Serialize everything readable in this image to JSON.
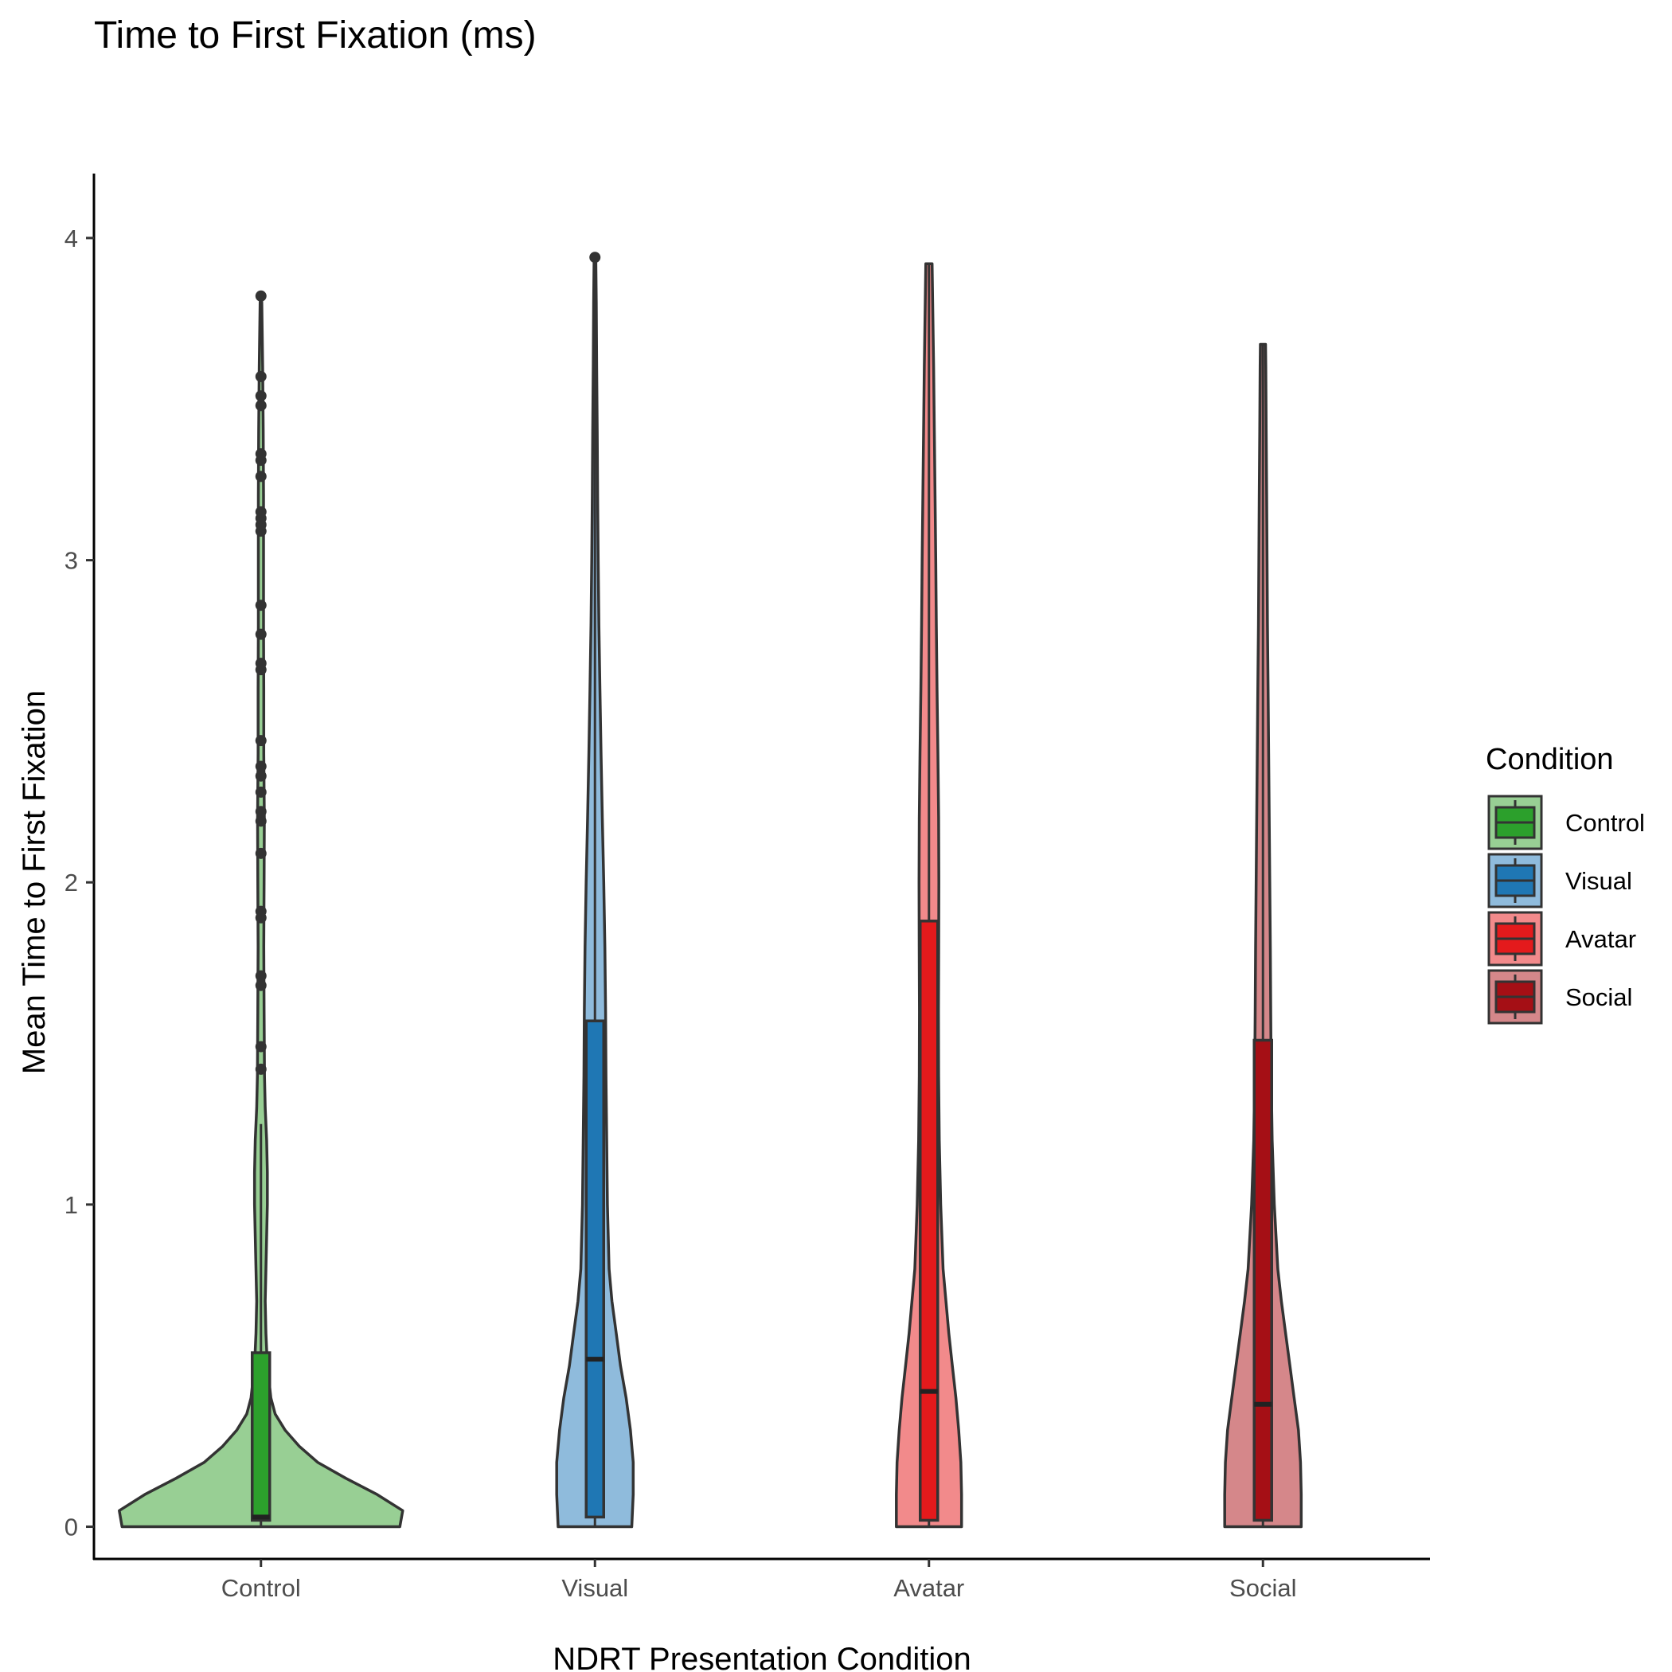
{
  "chart_data": {
    "type": "violin",
    "title": "Time to First Fixation (ms)",
    "xlabel": "NDRT Presentation Condition",
    "ylabel": "Mean Time to First Fixation",
    "ylim": [
      -0.1,
      4.2
    ],
    "yticks": [
      0,
      1,
      2,
      3,
      4
    ],
    "grid": false,
    "categories": [
      "Control",
      "Visual",
      "Avatar",
      "Social"
    ],
    "legend": {
      "title": "Condition",
      "placement": "right",
      "items": [
        {
          "label": "Control",
          "box_color": "#2ca02c",
          "violin_color": "#98cf94"
        },
        {
          "label": "Visual",
          "box_color": "#1f77b4",
          "violin_color": "#8fbbdc"
        },
        {
          "label": "Avatar",
          "box_color": "#e41a1c",
          "violin_color": "#f28a8b"
        },
        {
          "label": "Social",
          "box_color": "#a50f15",
          "violin_color": "#d5878a"
        }
      ]
    },
    "series": [
      {
        "category": "Control",
        "box_color": "#2ca02c",
        "violin_color": "#98cf94",
        "box": {
          "min": 0.0,
          "q1": 0.02,
          "median": 0.03,
          "q3": 0.54,
          "max": 1.25
        },
        "outliers": [
          1.42,
          1.49,
          1.68,
          1.71,
          1.89,
          1.91,
          2.09,
          2.19,
          2.22,
          2.28,
          2.33,
          2.36,
          2.44,
          2.66,
          2.68,
          2.77,
          2.86,
          3.09,
          3.11,
          3.13,
          3.15,
          3.26,
          3.31,
          3.33,
          3.48,
          3.51,
          3.57,
          3.82
        ],
        "density_max": 3.82,
        "density": [
          [
            0.0,
            0.98
          ],
          [
            0.05,
            1.0
          ],
          [
            0.1,
            0.82
          ],
          [
            0.15,
            0.6
          ],
          [
            0.2,
            0.4
          ],
          [
            0.25,
            0.27
          ],
          [
            0.3,
            0.17
          ],
          [
            0.35,
            0.1
          ],
          [
            0.4,
            0.07
          ],
          [
            0.5,
            0.045
          ],
          [
            0.6,
            0.035
          ],
          [
            0.7,
            0.03
          ],
          [
            0.8,
            0.035
          ],
          [
            0.9,
            0.04
          ],
          [
            1.0,
            0.045
          ],
          [
            1.1,
            0.045
          ],
          [
            1.2,
            0.04
          ],
          [
            1.3,
            0.03
          ],
          [
            1.4,
            0.025
          ],
          [
            1.6,
            0.022
          ],
          [
            1.8,
            0.02
          ],
          [
            2.0,
            0.022
          ],
          [
            2.2,
            0.024
          ],
          [
            2.4,
            0.02
          ],
          [
            2.6,
            0.02
          ],
          [
            2.8,
            0.018
          ],
          [
            3.0,
            0.018
          ],
          [
            3.2,
            0.018
          ],
          [
            3.4,
            0.016
          ],
          [
            3.6,
            0.012
          ],
          [
            3.8,
            0.006
          ],
          [
            3.82,
            0.0
          ]
        ]
      },
      {
        "category": "Visual",
        "box_color": "#1f77b4",
        "violin_color": "#8fbbdc",
        "box": {
          "min": 0.0,
          "q1": 0.03,
          "median": 0.52,
          "q3": 1.57,
          "max": 3.94
        },
        "outliers": [
          3.94
        ],
        "density_max": 3.94,
        "density": [
          [
            0.0,
            0.26
          ],
          [
            0.1,
            0.27
          ],
          [
            0.2,
            0.27
          ],
          [
            0.3,
            0.25
          ],
          [
            0.4,
            0.22
          ],
          [
            0.5,
            0.18
          ],
          [
            0.6,
            0.15
          ],
          [
            0.7,
            0.12
          ],
          [
            0.8,
            0.1
          ],
          [
            1.0,
            0.088
          ],
          [
            1.2,
            0.083
          ],
          [
            1.4,
            0.078
          ],
          [
            1.6,
            0.075
          ],
          [
            1.8,
            0.07
          ],
          [
            2.0,
            0.062
          ],
          [
            2.2,
            0.052
          ],
          [
            2.4,
            0.043
          ],
          [
            2.6,
            0.035
          ],
          [
            2.8,
            0.028
          ],
          [
            3.0,
            0.023
          ],
          [
            3.2,
            0.019
          ],
          [
            3.4,
            0.016
          ],
          [
            3.6,
            0.012
          ],
          [
            3.8,
            0.009
          ],
          [
            3.94,
            0.006
          ]
        ]
      },
      {
        "category": "Avatar",
        "box_color": "#e41a1c",
        "violin_color": "#f28a8b",
        "box": {
          "min": 0.0,
          "q1": 0.02,
          "median": 0.42,
          "q3": 1.88,
          "max": 3.92
        },
        "outliers": [],
        "density_max": 3.92,
        "density": [
          [
            0.0,
            0.23
          ],
          [
            0.1,
            0.23
          ],
          [
            0.2,
            0.225
          ],
          [
            0.3,
            0.21
          ],
          [
            0.4,
            0.19
          ],
          [
            0.5,
            0.165
          ],
          [
            0.6,
            0.14
          ],
          [
            0.7,
            0.12
          ],
          [
            0.8,
            0.1
          ],
          [
            1.0,
            0.083
          ],
          [
            1.2,
            0.073
          ],
          [
            1.4,
            0.068
          ],
          [
            1.6,
            0.067
          ],
          [
            1.8,
            0.069
          ],
          [
            2.0,
            0.07
          ],
          [
            2.2,
            0.068
          ],
          [
            2.4,
            0.063
          ],
          [
            2.6,
            0.057
          ],
          [
            2.8,
            0.052
          ],
          [
            3.0,
            0.048
          ],
          [
            3.2,
            0.043
          ],
          [
            3.4,
            0.038
          ],
          [
            3.6,
            0.033
          ],
          [
            3.8,
            0.026
          ],
          [
            3.92,
            0.022
          ]
        ]
      },
      {
        "category": "Social",
        "box_color": "#a50f15",
        "violin_color": "#d5878a",
        "box": {
          "min": 0.0,
          "q1": 0.02,
          "median": 0.38,
          "q3": 1.51,
          "max": 3.67
        },
        "outliers": [],
        "density_max": 3.67,
        "density": [
          [
            0.0,
            0.27
          ],
          [
            0.1,
            0.27
          ],
          [
            0.2,
            0.265
          ],
          [
            0.3,
            0.25
          ],
          [
            0.4,
            0.22
          ],
          [
            0.5,
            0.19
          ],
          [
            0.6,
            0.16
          ],
          [
            0.7,
            0.13
          ],
          [
            0.8,
            0.105
          ],
          [
            1.0,
            0.08
          ],
          [
            1.2,
            0.065
          ],
          [
            1.4,
            0.058
          ],
          [
            1.6,
            0.055
          ],
          [
            1.8,
            0.052
          ],
          [
            2.0,
            0.048
          ],
          [
            2.2,
            0.044
          ],
          [
            2.4,
            0.04
          ],
          [
            2.6,
            0.036
          ],
          [
            2.8,
            0.032
          ],
          [
            3.0,
            0.029
          ],
          [
            3.2,
            0.026
          ],
          [
            3.4,
            0.023
          ],
          [
            3.6,
            0.02
          ],
          [
            3.67,
            0.018
          ]
        ]
      }
    ]
  }
}
